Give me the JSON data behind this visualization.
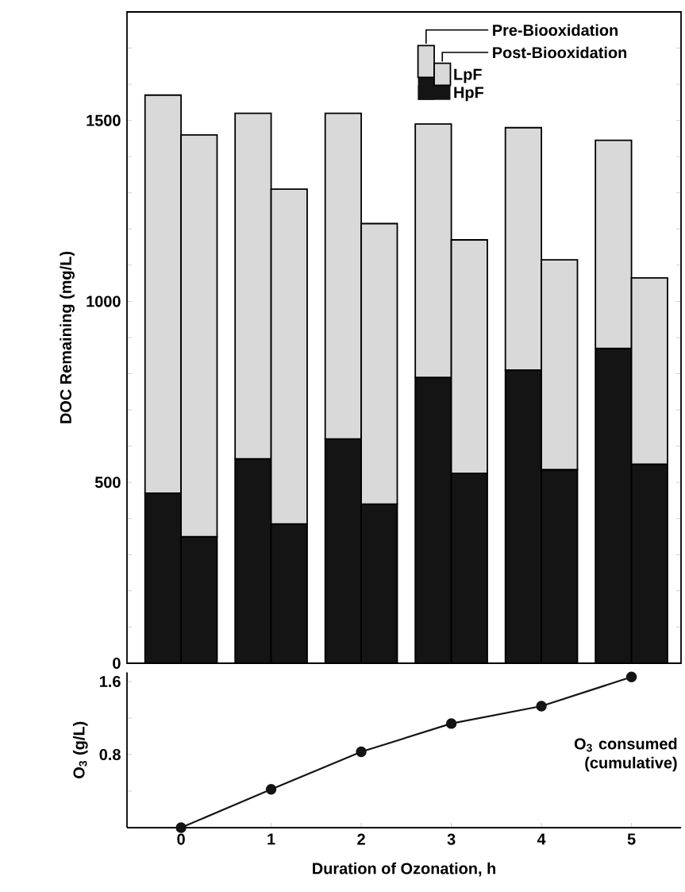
{
  "chart_data": [
    {
      "type": "bar",
      "stacked": true,
      "ylabel": "DOC Remaining (mg/L)",
      "categories": [
        null,
        null,
        null,
        null,
        null,
        null,
        null,
        null,
        null,
        null,
        null,
        null
      ],
      "ylim": [
        0,
        1800
      ],
      "yticks": [
        0,
        {
          "value": 100,
          "label": null
        },
        {
          "value": 200,
          "label": null
        },
        {
          "value": 300,
          "label": null
        },
        {
          "value": 400,
          "label": null
        },
        500,
        {
          "value": 600,
          "label": null
        },
        {
          "value": 700,
          "label": null
        },
        {
          "value": 800,
          "label": null
        },
        {
          "value": 900,
          "label": null
        },
        1000,
        {
          "value": 1100,
          "label": null
        },
        {
          "value": 1200,
          "label": null
        },
        {
          "value": 1300,
          "label": null
        },
        {
          "value": 1400,
          "label": null
        },
        1500,
        {
          "value": 1600,
          "label": null
        },
        {
          "value": 1700,
          "label": null
        }
      ],
      "tick_labels": "y",
      "legend": "top right",
      "annotations": [
        "Pre-Biooxidation",
        "Post-Biooxidation"
      ],
      "series": [
        {
          "name": "HpF",
          "color": "#141414",
          "values": [
            470,
            350,
            565,
            385,
            620,
            440,
            790,
            525,
            810,
            535,
            870,
            550
          ]
        },
        {
          "name": "LpF",
          "color": "#d9d9d9",
          "values": [
            1100,
            1110,
            955,
            925,
            900,
            775,
            700,
            645,
            670,
            580,
            575,
            515
          ]
        }
      ]
    },
    {
      "type": "line",
      "xlabel": "Duration of Ozonation, h",
      "ylabel": "O$_{3}$ (g/L)",
      "x": [
        0,
        1,
        2,
        3,
        4,
        5
      ],
      "xlim": [
        -0.6,
        5.55
      ],
      "ylim": [
        0,
        1.7
      ],
      "xticks": [
        0,
        1,
        2,
        3,
        4,
        5
      ],
      "yticks": [
        {
          "value": 0,
          "label": null
        },
        {
          "value": 0.4,
          "label": null
        },
        0.8,
        {
          "value": 1.2,
          "label": null
        },
        1.6
      ],
      "marker": "circle",
      "line_style": "solid",
      "annotations": [
        "O$_{3}$ consumed (cumulative)"
      ],
      "series": [
        {
          "color": "#141414",
          "values": [
            0,
            0.42,
            0.83,
            1.14,
            1.33,
            1.65
          ]
        }
      ]
    }
  ]
}
